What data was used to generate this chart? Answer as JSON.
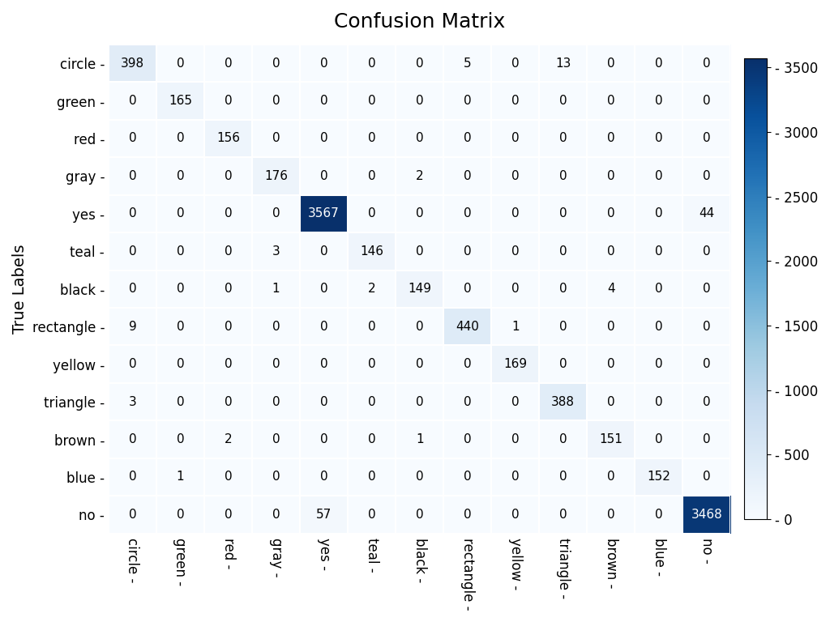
{
  "title": "Confusion Matrix",
  "ylabel": "True Labels",
  "classes": [
    "circle",
    "green",
    "red",
    "gray",
    "yes",
    "teal",
    "black",
    "rectangle",
    "yellow",
    "triangle",
    "brown",
    "blue",
    "no"
  ],
  "matrix": [
    [
      398,
      0,
      0,
      0,
      0,
      0,
      0,
      5,
      0,
      13,
      0,
      0,
      0
    ],
    [
      0,
      165,
      0,
      0,
      0,
      0,
      0,
      0,
      0,
      0,
      0,
      0,
      0
    ],
    [
      0,
      0,
      156,
      0,
      0,
      0,
      0,
      0,
      0,
      0,
      0,
      0,
      0
    ],
    [
      0,
      0,
      0,
      176,
      0,
      0,
      2,
      0,
      0,
      0,
      0,
      0,
      0
    ],
    [
      0,
      0,
      0,
      0,
      3567,
      0,
      0,
      0,
      0,
      0,
      0,
      0,
      44
    ],
    [
      0,
      0,
      0,
      3,
      0,
      146,
      0,
      0,
      0,
      0,
      0,
      0,
      0
    ],
    [
      0,
      0,
      0,
      1,
      0,
      2,
      149,
      0,
      0,
      0,
      4,
      0,
      0
    ],
    [
      9,
      0,
      0,
      0,
      0,
      0,
      0,
      440,
      1,
      0,
      0,
      0,
      0
    ],
    [
      0,
      0,
      0,
      0,
      0,
      0,
      0,
      0,
      169,
      0,
      0,
      0,
      0
    ],
    [
      3,
      0,
      0,
      0,
      0,
      0,
      0,
      0,
      0,
      388,
      0,
      0,
      0
    ],
    [
      0,
      0,
      2,
      0,
      0,
      0,
      1,
      0,
      0,
      0,
      151,
      0,
      0
    ],
    [
      0,
      1,
      0,
      0,
      0,
      0,
      0,
      0,
      0,
      0,
      0,
      152,
      0
    ],
    [
      0,
      0,
      0,
      0,
      57,
      0,
      0,
      0,
      0,
      0,
      0,
      0,
      3468
    ]
  ],
  "colormap": "Blues",
  "vmin": 0,
  "vmax": 3567,
  "white_text_threshold": 500,
  "title_fontsize": 18,
  "ylabel_fontsize": 14,
  "tick_fontsize": 12,
  "cell_fontsize": 11,
  "colorbar_ticks": [
    0,
    500,
    1000,
    1500,
    2000,
    2500,
    3000,
    3500
  ],
  "figsize": [
    10.24,
    7.68
  ],
  "dpi": 100
}
